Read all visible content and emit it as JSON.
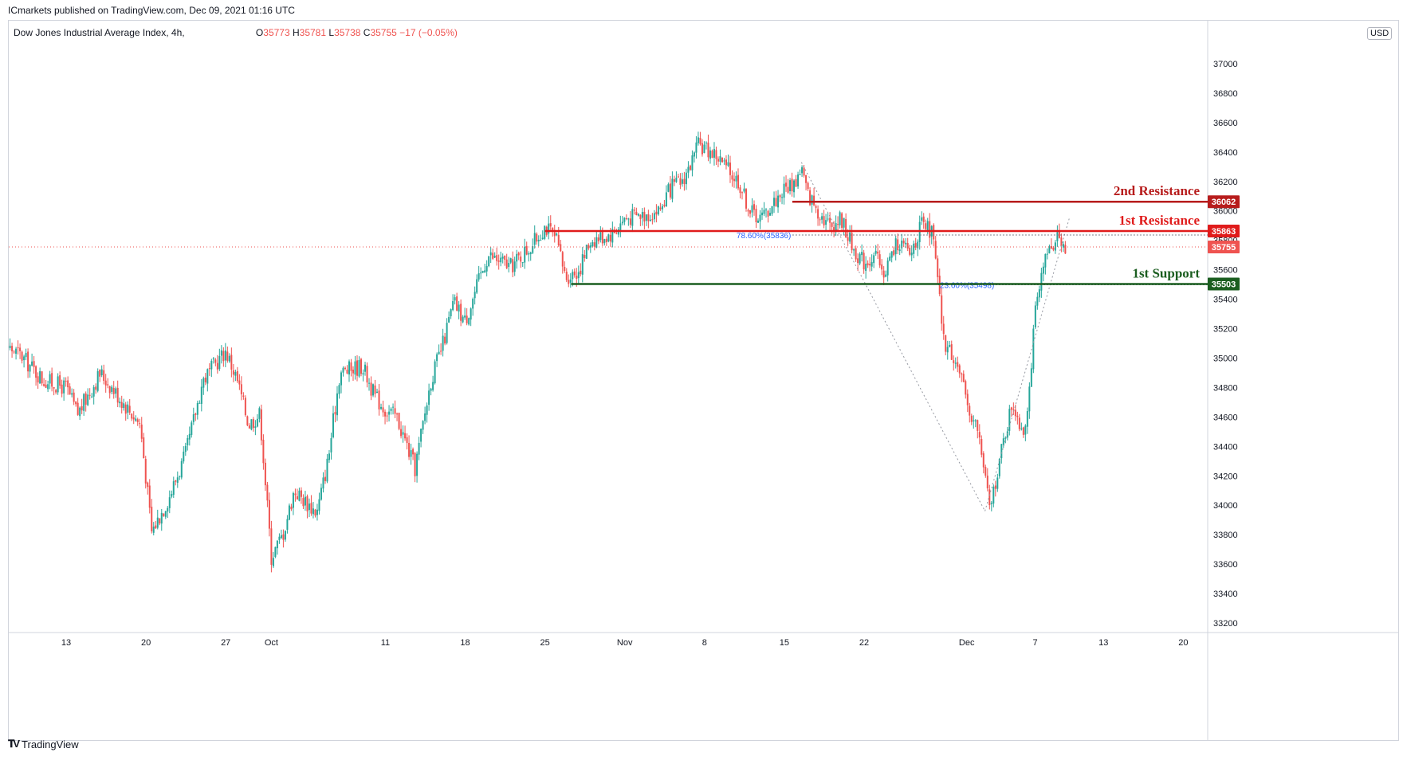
{
  "publisher_text": "ICmarkets published on TradingView.com, Dec 09, 2021 01:16 UTC",
  "legend": {
    "symbol": "Dow Jones Industrial Average Index, 4h,",
    "open_label": "O",
    "open": "35773",
    "high_label": "H",
    "high": "35781",
    "low_label": "L",
    "low": "35738",
    "close_label": "C",
    "close": "35755",
    "change": "−17 (−0.05%)"
  },
  "currency_button": "USD",
  "footer_brand": "TradingView",
  "chart_data": {
    "type": "candlestick",
    "y_axis": {
      "min": 33100,
      "max": 37300,
      "ticks": [
        33200,
        33400,
        33600,
        33800,
        34000,
        34200,
        34400,
        34600,
        34800,
        35000,
        35200,
        35400,
        35600,
        35800,
        36000,
        36200,
        36400,
        36600,
        36800,
        37000
      ]
    },
    "x_ticks": [
      {
        "label": "13",
        "day": 13
      },
      {
        "label": "20",
        "day": 20
      },
      {
        "label": "27",
        "day": 27
      },
      {
        "label": "Oct",
        "day": 31
      },
      {
        "label": "11",
        "day": 41
      },
      {
        "label": "18",
        "day": 48
      },
      {
        "label": "25",
        "day": 55
      },
      {
        "label": "Nov",
        "day": 62
      },
      {
        "label": "8",
        "day": 69
      },
      {
        "label": "15",
        "day": 76
      },
      {
        "label": "22",
        "day": 83
      },
      {
        "label": "Dec",
        "day": 92
      },
      {
        "label": "7",
        "day": 98
      },
      {
        "label": "13",
        "day": 104
      },
      {
        "label": "20",
        "day": 111
      }
    ],
    "path": [
      [
        6.5,
        35150
      ],
      [
        9,
        35020
      ],
      [
        11,
        34850
      ],
      [
        13,
        34800
      ],
      [
        14,
        34620
      ],
      [
        16,
        34900
      ],
      [
        18,
        34700
      ],
      [
        19.5,
        34550
      ],
      [
        20.5,
        33820
      ],
      [
        22,
        34050
      ],
      [
        23.5,
        34350
      ],
      [
        25,
        34850
      ],
      [
        27,
        35050
      ],
      [
        28,
        34850
      ],
      [
        29,
        34550
      ],
      [
        30,
        34620
      ],
      [
        31,
        33650
      ],
      [
        32,
        33800
      ],
      [
        33,
        34100
      ],
      [
        35,
        33950
      ],
      [
        36,
        34320
      ],
      [
        37,
        34900
      ],
      [
        39,
        34950
      ],
      [
        40,
        34750
      ],
      [
        41,
        34650
      ],
      [
        42,
        34600
      ],
      [
        43,
        34380
      ],
      [
        43.6,
        34250
      ],
      [
        45,
        34850
      ],
      [
        46,
        35080
      ],
      [
        47,
        35380
      ],
      [
        48,
        35250
      ],
      [
        49,
        35480
      ],
      [
        50,
        35700
      ],
      [
        52,
        35620
      ],
      [
        53,
        35700
      ],
      [
        54,
        35780
      ],
      [
        55,
        35900
      ],
      [
        56,
        35800
      ],
      [
        56.8,
        35550
      ],
      [
        58,
        35600
      ],
      [
        59,
        35800
      ],
      [
        61,
        35850
      ],
      [
        62,
        35950
      ],
      [
        64,
        35980
      ],
      [
        65,
        36000
      ],
      [
        66,
        36150
      ],
      [
        67,
        36200
      ],
      [
        68,
        36350
      ],
      [
        68.5,
        36450
      ],
      [
        70,
        36380
      ],
      [
        71,
        36280
      ],
      [
        72,
        36200
      ],
      [
        73,
        36000
      ],
      [
        74,
        35950
      ],
      [
        75,
        36050
      ],
      [
        76,
        36150
      ],
      [
        77,
        36200
      ],
      [
        77.5,
        36300
      ],
      [
        78,
        36120
      ],
      [
        79,
        36000
      ],
      [
        80,
        35900
      ],
      [
        81,
        35950
      ],
      [
        82,
        35750
      ],
      [
        83,
        35650
      ],
      [
        84,
        35700
      ],
      [
        84.6,
        35560
      ],
      [
        86,
        35800
      ],
      [
        87,
        35700
      ],
      [
        88,
        35900
      ],
      [
        89,
        35850
      ],
      [
        89.5,
        35480
      ],
      [
        90,
        35100
      ],
      [
        91,
        35000
      ],
      [
        92,
        34700
      ],
      [
        93,
        34500
      ],
      [
        93.6,
        34200
      ],
      [
        94,
        33970
      ],
      [
        95,
        34350
      ],
      [
        96,
        34700
      ],
      [
        97,
        34500
      ],
      [
        97.5,
        34800
      ],
      [
        98,
        35300
      ],
      [
        99,
        35700
      ],
      [
        100,
        35850
      ],
      [
        100.7,
        35755
      ]
    ],
    "seed": 17,
    "current_price": 35755,
    "levels": [
      {
        "name": "2nd Resistance",
        "value": 36062,
        "color": "#b71c1c",
        "start_day": 76.7
      },
      {
        "name": "1st Resistance",
        "value": 35863,
        "color": "#e01b1b",
        "start_day": 55
      },
      {
        "name": "1st Support",
        "value": 35503,
        "color": "#1b5e20",
        "start_day": 57.3
      }
    ],
    "fib_levels": [
      {
        "label": "78.60%(35836)",
        "value": 35836,
        "start_day": 76.7
      },
      {
        "label": "23.60%(35498)",
        "value": 35498,
        "start_day": 89.5
      }
    ],
    "fib_swings": [
      {
        "from_day": 77.5,
        "from": 36330,
        "to_day": 93.6,
        "to": 33960
      },
      {
        "from_day": 93.6,
        "from": 33960,
        "to_day": 101,
        "to": 35950
      }
    ],
    "colors": {
      "up": "#26a69a",
      "down": "#ef5350"
    }
  }
}
